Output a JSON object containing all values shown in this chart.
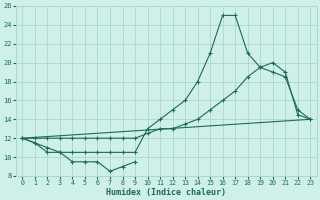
{
  "xlabel": "Humidex (Indice chaleur)",
  "bg_color": "#cef0e8",
  "grid_color": "#aad8cc",
  "line_color": "#1a6b5a",
  "xlim": [
    -0.5,
    23.5
  ],
  "ylim": [
    8,
    26
  ],
  "xticks": [
    0,
    1,
    2,
    3,
    4,
    5,
    6,
    7,
    8,
    9,
    10,
    11,
    12,
    13,
    14,
    15,
    16,
    17,
    18,
    19,
    20,
    21,
    22,
    23
  ],
  "yticks": [
    8,
    10,
    12,
    14,
    16,
    18,
    20,
    22,
    24,
    26
  ],
  "series1_x": [
    0,
    1,
    2,
    3,
    4,
    5,
    6,
    7,
    8,
    9,
    10,
    11,
    12,
    13,
    14,
    15,
    16,
    17,
    18,
    19,
    20,
    21,
    22,
    23
  ],
  "series1_y": [
    12,
    11.5,
    11,
    10.5,
    10.5,
    10.5,
    10.5,
    10.5,
    10.5,
    10.5,
    13,
    14,
    15,
    16,
    18,
    21,
    25,
    25,
    21,
    19.5,
    19,
    18.5,
    15,
    14
  ],
  "series2_x": [
    0,
    1,
    2,
    3,
    4,
    5,
    6,
    7,
    8,
    9,
    10,
    11,
    12,
    13,
    14,
    15,
    16,
    17,
    18,
    19,
    20,
    21,
    22,
    23
  ],
  "series2_y": [
    12,
    12,
    12,
    12,
    12,
    12,
    12,
    12,
    12,
    12,
    12.5,
    13,
    13,
    13.5,
    14,
    15,
    16,
    17,
    18.5,
    19.5,
    20,
    19,
    14.5,
    14
  ],
  "series3_x": [
    0,
    23
  ],
  "series3_y": [
    12,
    14
  ],
  "series4_x": [
    0,
    1,
    2,
    3,
    4,
    5,
    6,
    7,
    8,
    9
  ],
  "series4_y": [
    12,
    11.5,
    10.5,
    10.5,
    9.5,
    9.5,
    9.5,
    8.5,
    9,
    9.5
  ]
}
